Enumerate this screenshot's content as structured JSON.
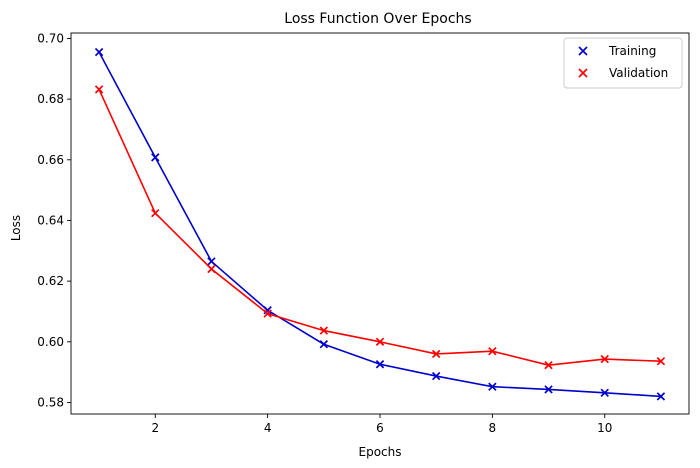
{
  "chart_data": {
    "type": "line",
    "title": "Loss Function Over Epochs",
    "xlabel": "Epochs",
    "ylabel": "Loss",
    "xlim": [
      0.5,
      11.5
    ],
    "ylim": [
      0.5762,
      0.7018
    ],
    "xticks": [
      2,
      4,
      6,
      8,
      10
    ],
    "yticks": [
      0.58,
      0.6,
      0.62,
      0.64,
      0.66,
      0.68,
      0.7
    ],
    "ytick_labels": [
      "0.58",
      "0.60",
      "0.62",
      "0.64",
      "0.66",
      "0.68",
      "0.70"
    ],
    "x": [
      1,
      2,
      3,
      4,
      5,
      6,
      7,
      8,
      9,
      10,
      11
    ],
    "series": [
      {
        "name": "Training",
        "color": "#0000cc",
        "marker": "x",
        "values": [
          0.6955,
          0.6608,
          0.6265,
          0.6104,
          0.5992,
          0.5926,
          0.5887,
          0.5852,
          0.5843,
          0.5832,
          0.582
        ]
      },
      {
        "name": "Validation",
        "color": "#ff0000",
        "marker": "x",
        "values": [
          0.6832,
          0.6424,
          0.624,
          0.6093,
          0.6037,
          0.6,
          0.596,
          0.5969,
          0.5923,
          0.5943,
          0.5936
        ]
      }
    ],
    "grid": false,
    "legend_position": "top-right"
  }
}
